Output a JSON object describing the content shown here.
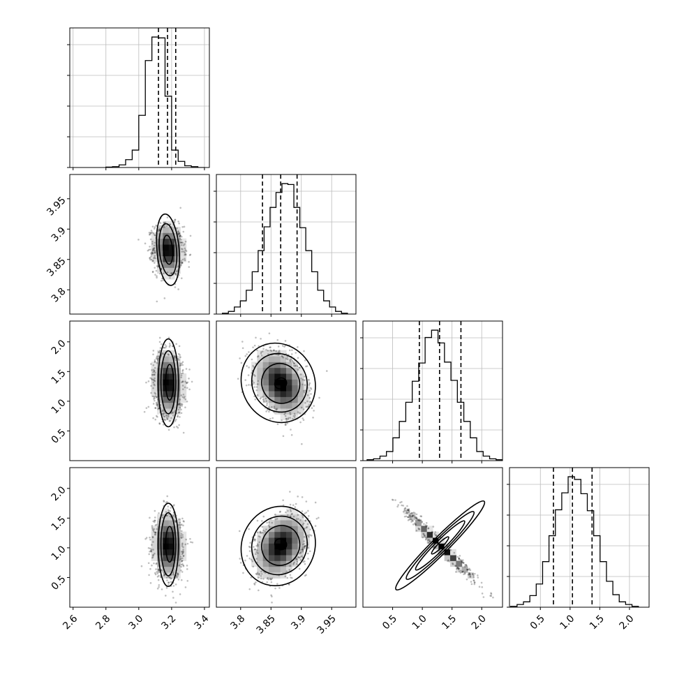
{
  "chart_data": [
    {
      "type": "histogram",
      "panel": "row1-col1",
      "x_range": [
        2.58,
        3.43
      ],
      "x_ticks": [
        2.6,
        2.8,
        3.0,
        3.2,
        3.4
      ],
      "bins": {
        "x_start": 2.8,
        "x_end": 3.4,
        "counts": [
          0.5,
          1,
          3,
          9,
          20,
          60,
          123,
          150,
          149,
          82,
          20,
          7,
          2,
          1,
          0
        ]
      },
      "quantile_lines": [
        3.12,
        3.175,
        3.225
      ]
    },
    {
      "type": "histogram",
      "panel": "row2-col2",
      "x_range": [
        3.76,
        3.99
      ],
      "x_ticks": [
        3.8,
        3.85,
        3.9,
        3.95
      ],
      "bins": {
        "x_start": 3.77,
        "x_end": 3.976,
        "counts": [
          1,
          3,
          8,
          15,
          27,
          48,
          72,
          99,
          121,
          138,
          148,
          147,
          121,
          98,
          72,
          48,
          27,
          15,
          8,
          3,
          1
        ]
      },
      "quantile_lines": [
        3.836,
        3.866,
        3.893
      ]
    },
    {
      "type": "histogram",
      "panel": "row3-col3",
      "x_range": [
        0.0,
        2.35
      ],
      "x_ticks": [
        0.5,
        1.0,
        1.5,
        2.0
      ],
      "bins": {
        "x_start": 0.07,
        "x_end": 2.35,
        "counts": [
          1,
          2,
          5,
          10,
          25,
          43,
          64,
          87,
          107,
          135,
          143,
          129,
          108,
          88,
          64,
          43,
          25,
          10,
          5,
          2,
          1
        ]
      },
      "quantile_lines": [
        0.95,
        1.29,
        1.65
      ]
    },
    {
      "type": "histogram",
      "panel": "row4-col4",
      "x_range": [
        -0.02,
        2.33
      ],
      "x_ticks": [
        0.5,
        1.0,
        1.5,
        2.0
      ],
      "bins": {
        "x_start": 0.0,
        "x_end": 2.15,
        "counts": [
          1,
          3,
          6,
          13,
          26,
          51,
          80,
          109,
          128,
          146,
          143,
          127,
          108,
          80,
          51,
          29,
          14,
          6,
          3,
          1
        ]
      },
      "quantile_lines": [
        0.72,
        1.04,
        1.37
      ]
    },
    {
      "type": "scatter-density",
      "panel": "row2-col1",
      "x_range": [
        2.58,
        3.43
      ],
      "y_range": [
        3.76,
        3.99
      ],
      "y_ticks": [
        3.8,
        3.85,
        3.9,
        3.95
      ],
      "center": [
        3.18,
        3.866
      ],
      "sd": [
        0.045,
        0.021
      ],
      "corr": -0.08,
      "contours": [
        {
          "center": [
            3.178,
            3.866
          ],
          "rx": 0.028,
          "ry": 0.024,
          "angle": -5
        },
        {
          "center": [
            3.178,
            3.866
          ],
          "rx": 0.052,
          "ry": 0.043,
          "angle": -5
        },
        {
          "center": [
            3.178,
            3.866
          ],
          "rx": 0.068,
          "ry": 0.059,
          "angle": -5
        }
      ]
    },
    {
      "type": "scatter-density",
      "panel": "row3-col1",
      "x_range": [
        2.58,
        3.43
      ],
      "y_range": [
        0.0,
        2.35
      ],
      "y_ticks": [
        0.5,
        1.0,
        1.5,
        2.0
      ],
      "center": [
        3.18,
        1.3
      ],
      "sd": [
        0.045,
        0.27
      ],
      "corr": -0.1,
      "contours": [
        {
          "center": [
            3.188,
            1.32
          ],
          "rx": 0.024,
          "ry": 0.3,
          "angle": 0
        },
        {
          "center": [
            3.18,
            1.32
          ],
          "rx": 0.045,
          "ry": 0.53,
          "angle": 0
        },
        {
          "center": [
            3.18,
            1.31
          ],
          "rx": 0.062,
          "ry": 0.74,
          "angle": 0
        }
      ]
    },
    {
      "type": "scatter-density",
      "panel": "row3-col2",
      "x_range": [
        3.76,
        3.99
      ],
      "y_range": [
        0.0,
        2.35
      ],
      "center": [
        3.866,
        1.3
      ],
      "sd": [
        0.021,
        0.27
      ],
      "corr": -0.35,
      "contours": [
        {
          "center": [
            3.866,
            1.3
          ],
          "rx": 0.01,
          "ry": 0.09,
          "angle": -25
        },
        {
          "center": [
            3.866,
            1.3
          ],
          "rx": 0.031,
          "ry": 0.34,
          "angle": -25
        },
        {
          "center": [
            3.864,
            1.31
          ],
          "rx": 0.045,
          "ry": 0.5,
          "angle": -25
        },
        {
          "center": [
            3.862,
            1.31
          ],
          "rx": 0.06,
          "ry": 0.68,
          "angle": -25
        }
      ]
    },
    {
      "type": "scatter-density",
      "panel": "row4-col1",
      "x_range": [
        2.58,
        3.43
      ],
      "y_range": [
        0.0,
        2.35
      ],
      "y_ticks": [
        0.5,
        1.0,
        1.5,
        2.0
      ],
      "x_ticks": [
        2.6,
        2.8,
        3.0,
        3.2,
        3.4
      ],
      "center": [
        3.18,
        1.04
      ],
      "sd": [
        0.045,
        0.27
      ],
      "corr": -0.05,
      "contours": [
        {
          "center": [
            3.188,
            1.06
          ],
          "rx": 0.024,
          "ry": 0.3,
          "angle": 0
        },
        {
          "center": [
            3.18,
            1.06
          ],
          "rx": 0.045,
          "ry": 0.53,
          "angle": 0
        },
        {
          "center": [
            3.18,
            1.05
          ],
          "rx": 0.062,
          "ry": 0.7,
          "angle": 0
        }
      ]
    },
    {
      "type": "scatter-density",
      "panel": "row4-col2",
      "x_range": [
        3.76,
        3.99
      ],
      "y_range": [
        0.0,
        2.35
      ],
      "x_ticks": [
        3.8,
        3.85,
        3.9,
        3.95
      ],
      "center": [
        3.866,
        1.04
      ],
      "sd": [
        0.021,
        0.27
      ],
      "corr": 0.35,
      "contours": [
        {
          "center": [
            3.866,
            1.06
          ],
          "rx": 0.01,
          "ry": 0.09,
          "angle": 25
        },
        {
          "center": [
            3.866,
            1.04
          ],
          "rx": 0.031,
          "ry": 0.34,
          "angle": 25
        },
        {
          "center": [
            3.864,
            1.04
          ],
          "rx": 0.045,
          "ry": 0.5,
          "angle": 25
        },
        {
          "center": [
            3.862,
            1.03
          ],
          "rx": 0.06,
          "ry": 0.68,
          "angle": 25
        }
      ]
    },
    {
      "type": "scatter-density",
      "panel": "row4-col3",
      "x_range": [
        0.0,
        2.35
      ],
      "y_range": [
        0.0,
        2.35
      ],
      "x_ticks": [
        0.5,
        1.0,
        1.5,
        2.0
      ],
      "center": [
        1.3,
        1.04
      ],
      "sd": [
        0.27,
        0.27
      ],
      "corr": -0.98,
      "contours": [
        {
          "center": [
            1.3,
            1.04
          ],
          "rx": 0.2,
          "ry": 0.04,
          "angle": -45
        },
        {
          "center": [
            1.3,
            1.04
          ],
          "rx": 0.58,
          "ry": 0.08,
          "angle": -45
        },
        {
          "center": [
            1.3,
            1.04
          ],
          "rx": 0.8,
          "ry": 0.11,
          "angle": -45
        },
        {
          "center": [
            1.3,
            1.04
          ],
          "rx": 1.05,
          "ry": 0.14,
          "angle": -45
        }
      ]
    }
  ]
}
